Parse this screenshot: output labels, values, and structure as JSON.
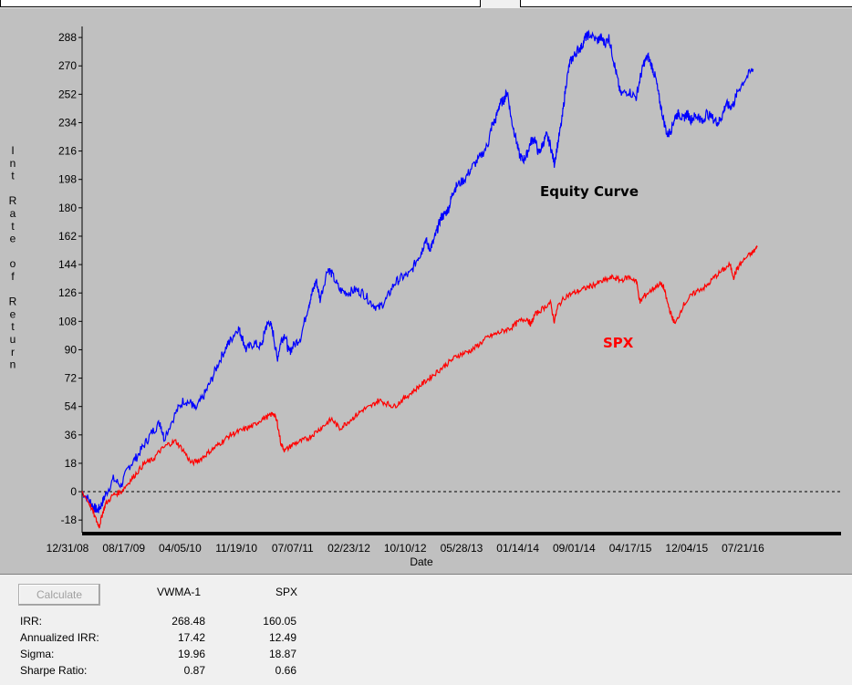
{
  "chart_data": {
    "type": "line",
    "xlabel": "Date",
    "ylabel": "Int Rate of Return",
    "ylim": [
      -26,
      295
    ],
    "yticks": [
      -18,
      0,
      18,
      36,
      54,
      72,
      90,
      108,
      126,
      144,
      162,
      180,
      198,
      216,
      234,
      252,
      270,
      288
    ],
    "xtick_labels": [
      "12/31/08",
      "08/17/09",
      "04/05/10",
      "11/19/10",
      "07/07/11",
      "02/23/12",
      "10/10/12",
      "05/28/13",
      "01/14/14",
      "09/01/14",
      "04/17/15",
      "12/04/15",
      "07/21/16"
    ],
    "reference_line": 0,
    "grid": false,
    "series": [
      {
        "name": "Equity Curve",
        "color": "#0000ff",
        "points": [
          [
            0,
            0
          ],
          [
            0.01,
            -6
          ],
          [
            0.015,
            -10
          ],
          [
            0.02,
            -12
          ],
          [
            0.025,
            -8
          ],
          [
            0.03,
            -2
          ],
          [
            0.04,
            8
          ],
          [
            0.05,
            4
          ],
          [
            0.06,
            16
          ],
          [
            0.07,
            22
          ],
          [
            0.08,
            30
          ],
          [
            0.09,
            38
          ],
          [
            0.1,
            44
          ],
          [
            0.105,
            34
          ],
          [
            0.12,
            50
          ],
          [
            0.13,
            58
          ],
          [
            0.14,
            56
          ],
          [
            0.145,
            52
          ],
          [
            0.155,
            60
          ],
          [
            0.165,
            70
          ],
          [
            0.175,
            82
          ],
          [
            0.185,
            92
          ],
          [
            0.19,
            96
          ],
          [
            0.2,
            104
          ],
          [
            0.205,
            98
          ],
          [
            0.21,
            90
          ],
          [
            0.22,
            94
          ],
          [
            0.23,
            92
          ],
          [
            0.235,
            104
          ],
          [
            0.24,
            108
          ],
          [
            0.245,
            100
          ],
          [
            0.25,
            84
          ],
          [
            0.255,
            96
          ],
          [
            0.26,
            100
          ],
          [
            0.265,
            88
          ],
          [
            0.27,
            92
          ],
          [
            0.28,
            98
          ],
          [
            0.29,
            118
          ],
          [
            0.295,
            126
          ],
          [
            0.3,
            134
          ],
          [
            0.305,
            122
          ],
          [
            0.315,
            142
          ],
          [
            0.32,
            138
          ],
          [
            0.33,
            128
          ],
          [
            0.34,
            126
          ],
          [
            0.35,
            128
          ],
          [
            0.36,
            126
          ],
          [
            0.37,
            120
          ],
          [
            0.38,
            116
          ],
          [
            0.39,
            122
          ],
          [
            0.4,
            132
          ],
          [
            0.41,
            136
          ],
          [
            0.42,
            138
          ],
          [
            0.43,
            148
          ],
          [
            0.435,
            152
          ],
          [
            0.44,
            160
          ],
          [
            0.445,
            154
          ],
          [
            0.45,
            158
          ],
          [
            0.455,
            166
          ],
          [
            0.46,
            174
          ],
          [
            0.465,
            176
          ],
          [
            0.47,
            180
          ],
          [
            0.475,
            190
          ],
          [
            0.48,
            194
          ],
          [
            0.49,
            198
          ],
          [
            0.5,
            206
          ],
          [
            0.51,
            212
          ],
          [
            0.52,
            220
          ],
          [
            0.525,
            232
          ],
          [
            0.53,
            236
          ],
          [
            0.535,
            246
          ],
          [
            0.54,
            248
          ],
          [
            0.545,
            254
          ],
          [
            0.55,
            236
          ],
          [
            0.555,
            226
          ],
          [
            0.56,
            214
          ],
          [
            0.565,
            210
          ],
          [
            0.57,
            214
          ],
          [
            0.575,
            222
          ],
          [
            0.58,
            224
          ],
          [
            0.585,
            214
          ],
          [
            0.59,
            220
          ],
          [
            0.595,
            226
          ],
          [
            0.6,
            220
          ],
          [
            0.605,
            208
          ],
          [
            0.61,
            222
          ],
          [
            0.615,
            236
          ],
          [
            0.62,
            258
          ],
          [
            0.625,
            272
          ],
          [
            0.63,
            276
          ],
          [
            0.635,
            280
          ],
          [
            0.64,
            282
          ],
          [
            0.645,
            288
          ],
          [
            0.65,
            290
          ],
          [
            0.66,
            286
          ],
          [
            0.665,
            288
          ],
          [
            0.67,
            284
          ],
          [
            0.675,
            288
          ],
          [
            0.68,
            276
          ],
          [
            0.685,
            264
          ],
          [
            0.69,
            252
          ],
          [
            0.7,
            254
          ],
          [
            0.71,
            250
          ],
          [
            0.715,
            262
          ],
          [
            0.72,
            272
          ],
          [
            0.725,
            276
          ],
          [
            0.73,
            270
          ],
          [
            0.735,
            262
          ],
          [
            0.74,
            248
          ],
          [
            0.745,
            236
          ],
          [
            0.75,
            226
          ],
          [
            0.755,
            230
          ],
          [
            0.76,
            238
          ],
          [
            0.765,
            240
          ],
          [
            0.77,
            236
          ],
          [
            0.775,
            240
          ],
          [
            0.78,
            236
          ],
          [
            0.785,
            238
          ],
          [
            0.79,
            238
          ],
          [
            0.795,
            234
          ],
          [
            0.8,
            240
          ],
          [
            0.81,
            236
          ],
          [
            0.815,
            234
          ],
          [
            0.82,
            238
          ],
          [
            0.825,
            246
          ],
          [
            0.83,
            244
          ],
          [
            0.835,
            246
          ],
          [
            0.84,
            254
          ],
          [
            0.85,
            262
          ],
          [
            0.86,
            268
          ]
        ]
      },
      {
        "name": "SPX",
        "color": "#ff0000",
        "points": [
          [
            0,
            0
          ],
          [
            0.01,
            -8
          ],
          [
            0.018,
            -18
          ],
          [
            0.022,
            -22
          ],
          [
            0.026,
            -14
          ],
          [
            0.03,
            -8
          ],
          [
            0.04,
            -2
          ],
          [
            0.05,
            0
          ],
          [
            0.06,
            6
          ],
          [
            0.07,
            12
          ],
          [
            0.08,
            18
          ],
          [
            0.09,
            20
          ],
          [
            0.1,
            26
          ],
          [
            0.11,
            30
          ],
          [
            0.12,
            32
          ],
          [
            0.13,
            26
          ],
          [
            0.14,
            18
          ],
          [
            0.15,
            20
          ],
          [
            0.16,
            24
          ],
          [
            0.17,
            28
          ],
          [
            0.18,
            32
          ],
          [
            0.19,
            36
          ],
          [
            0.2,
            38
          ],
          [
            0.21,
            40
          ],
          [
            0.22,
            42
          ],
          [
            0.23,
            46
          ],
          [
            0.24,
            48
          ],
          [
            0.245,
            50
          ],
          [
            0.25,
            44
          ],
          [
            0.255,
            30
          ],
          [
            0.26,
            26
          ],
          [
            0.27,
            30
          ],
          [
            0.28,
            32
          ],
          [
            0.29,
            34
          ],
          [
            0.3,
            38
          ],
          [
            0.31,
            42
          ],
          [
            0.32,
            46
          ],
          [
            0.33,
            40
          ],
          [
            0.34,
            44
          ],
          [
            0.35,
            48
          ],
          [
            0.36,
            52
          ],
          [
            0.37,
            54
          ],
          [
            0.38,
            58
          ],
          [
            0.39,
            56
          ],
          [
            0.4,
            54
          ],
          [
            0.41,
            58
          ],
          [
            0.42,
            62
          ],
          [
            0.43,
            66
          ],
          [
            0.44,
            70
          ],
          [
            0.45,
            74
          ],
          [
            0.46,
            78
          ],
          [
            0.47,
            82
          ],
          [
            0.48,
            86
          ],
          [
            0.49,
            88
          ],
          [
            0.5,
            90
          ],
          [
            0.51,
            94
          ],
          [
            0.52,
            98
          ],
          [
            0.53,
            100
          ],
          [
            0.54,
            102
          ],
          [
            0.55,
            104
          ],
          [
            0.56,
            108
          ],
          [
            0.57,
            110
          ],
          [
            0.575,
            106
          ],
          [
            0.58,
            112
          ],
          [
            0.59,
            116
          ],
          [
            0.6,
            120
          ],
          [
            0.605,
            108
          ],
          [
            0.61,
            118
          ],
          [
            0.62,
            124
          ],
          [
            0.63,
            126
          ],
          [
            0.64,
            128
          ],
          [
            0.65,
            130
          ],
          [
            0.66,
            132
          ],
          [
            0.67,
            134
          ],
          [
            0.68,
            136
          ],
          [
            0.69,
            134
          ],
          [
            0.7,
            136
          ],
          [
            0.71,
            134
          ],
          [
            0.715,
            120
          ],
          [
            0.72,
            124
          ],
          [
            0.73,
            128
          ],
          [
            0.74,
            132
          ],
          [
            0.745,
            130
          ],
          [
            0.75,
            120
          ],
          [
            0.755,
            112
          ],
          [
            0.76,
            106
          ],
          [
            0.77,
            118
          ],
          [
            0.78,
            124
          ],
          [
            0.79,
            128
          ],
          [
            0.8,
            130
          ],
          [
            0.81,
            136
          ],
          [
            0.82,
            140
          ],
          [
            0.83,
            144
          ],
          [
            0.835,
            136
          ],
          [
            0.84,
            142
          ],
          [
            0.85,
            148
          ],
          [
            0.86,
            152
          ],
          [
            0.865,
            155
          ]
        ]
      }
    ],
    "annotations": [
      {
        "text": "Equity Curve",
        "color": "#000000"
      },
      {
        "text": "SPX",
        "color": "#ff0000"
      }
    ]
  },
  "stats": {
    "calculate_label": "Calculate",
    "columns": [
      "VWMA-1",
      "SPX"
    ],
    "rows": [
      {
        "label": "IRR:",
        "values": [
          "268.48",
          "160.05"
        ]
      },
      {
        "label": "Annualized IRR:",
        "values": [
          "17.42",
          "12.49"
        ]
      },
      {
        "label": "Sigma:",
        "values": [
          "19.96",
          "18.87"
        ]
      },
      {
        "label": "Sharpe Ratio:",
        "values": [
          "0.87",
          "0.66"
        ]
      }
    ]
  }
}
